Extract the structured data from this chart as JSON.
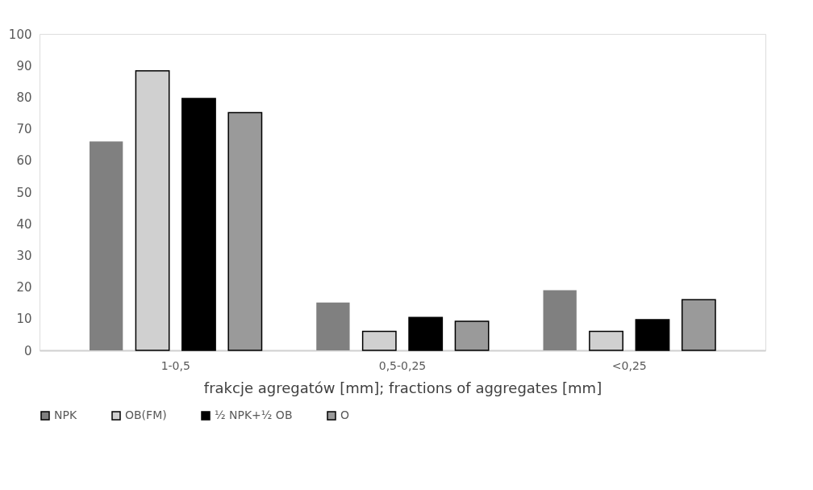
{
  "chart_data": {
    "type": "bar",
    "xlabel": "frakcje agregatów [mm]; fractions of aggregates [mm]",
    "categories": [
      "1-0,5",
      "0,5-0,25",
      "<0,25"
    ],
    "series": [
      {
        "name": "NPK",
        "color": "#808080",
        "values": [
          66,
          15.1,
          19
        ]
      },
      {
        "name": "OB(FM)",
        "color": "#d0d0d0",
        "values": [
          88.3,
          6,
          6
        ]
      },
      {
        "name": "½ NPK+½ OB",
        "color": "#000000",
        "values": [
          79.6,
          10.4,
          9.7
        ]
      },
      {
        "name": "O",
        "color": "#9a9a9a",
        "values": [
          75.1,
          9.2,
          16
        ]
      }
    ],
    "ylim": [
      0,
      100
    ],
    "yticks": [
      0,
      10,
      20,
      30,
      40,
      50,
      60,
      70,
      80,
      90,
      100
    ],
    "grid": false,
    "legend": "bottom"
  }
}
